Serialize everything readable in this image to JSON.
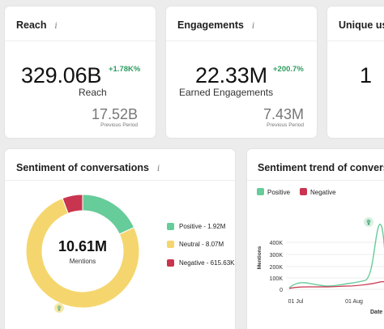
{
  "cards": {
    "reach": {
      "title": "Reach",
      "info": "i",
      "value": "329.06B",
      "delta": "+1.78K%",
      "label": "Reach",
      "prev_value": "17.52B",
      "prev_label": "Previous Period"
    },
    "engagements": {
      "title": "Engagements",
      "info": "i",
      "value": "22.33M",
      "delta": "+200.7%",
      "label": "Earned Engagements",
      "prev_value": "7.43M",
      "prev_label": "Previous Period"
    },
    "unique": {
      "title": "Unique use",
      "value": "1"
    }
  },
  "sentiment": {
    "title": "Sentiment of conversations",
    "info": "i",
    "total": "10.61M",
    "total_label": "Mentions",
    "legend": [
      {
        "label": "Positive - 1.92M",
        "color": "#66cc9a"
      },
      {
        "label": "Neutral - 8.07M",
        "color": "#f5d66e"
      },
      {
        "label": "Negative - 615.63K",
        "color": "#c9344f"
      }
    ],
    "slices": [
      {
        "name": "Positive",
        "value": 1.92,
        "color": "#66cc9a"
      },
      {
        "name": "Neutral",
        "value": 8.07,
        "color": "#f5d66e"
      },
      {
        "name": "Negative",
        "value": 0.61563,
        "color": "#c9344f"
      }
    ],
    "marker_icon": "lightbulb-icon"
  },
  "trend": {
    "title": "Sentiment trend of conversatio",
    "legend_positive": "Positive",
    "legend_negative": "Negative",
    "positive_color": "#66cc9a",
    "negative_color": "#c9344f",
    "ylabel": "Mentions",
    "yticks": [
      "400K",
      "300K",
      "200K",
      "100K",
      "0"
    ],
    "xticks": [
      "01 Jul",
      "01 Aug"
    ],
    "xlabel_partial": "Date",
    "marker_icon": "lightbulb-icon"
  },
  "chart_data": {
    "type": "pie",
    "categories": [
      "Positive",
      "Neutral",
      "Negative"
    ],
    "values": [
      1.92,
      8.07,
      0.61563
    ],
    "title": "Sentiment of conversations"
  }
}
